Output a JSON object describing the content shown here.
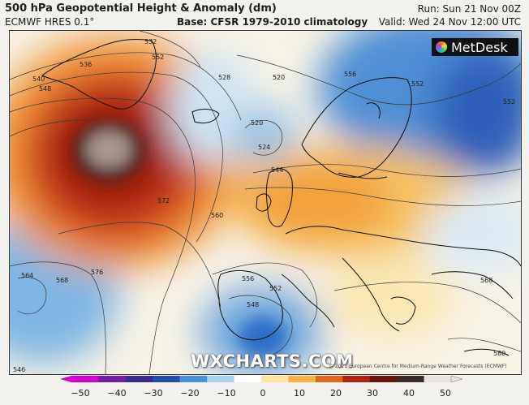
{
  "header": {
    "title": "500 hPa Geopotential Height & Anomaly (dm)",
    "model": "ECMWF HRES 0.1°",
    "base": "Base: CFSR 1979-2010 climatology",
    "run": "Run: Sun 21 Nov 00Z",
    "valid": "Valid: Wed 24 Nov 12:00 UTC"
  },
  "branding": {
    "logo": "MetDesk",
    "watermark": "WXCHARTS.COM",
    "copyright": "© 2021 European Centre for Medium-Range Weather Forecasts (ECMWF)"
  },
  "contour_labels": [
    "532",
    "536",
    "540",
    "548",
    "552",
    "528",
    "520",
    "520",
    "524",
    "544",
    "572",
    "576",
    "568",
    "564",
    "556",
    "552",
    "548",
    "552",
    "556",
    "568",
    "580",
    "560",
    "552",
    "546"
  ],
  "colorbar": {
    "ticks": [
      "−50",
      "−40",
      "−30",
      "−20",
      "−10",
      "0",
      "10",
      "20",
      "30",
      "40",
      "50"
    ],
    "colors": [
      "#d600d6",
      "#7a1aa8",
      "#3b2a8f",
      "#1f4fb5",
      "#4a90d9",
      "#a9d4f0",
      "#ffffff",
      "#fde7a0",
      "#f8b33c",
      "#e6641c",
      "#b52010",
      "#6b140c",
      "#3a2a28",
      "#e9e4e0"
    ]
  }
}
